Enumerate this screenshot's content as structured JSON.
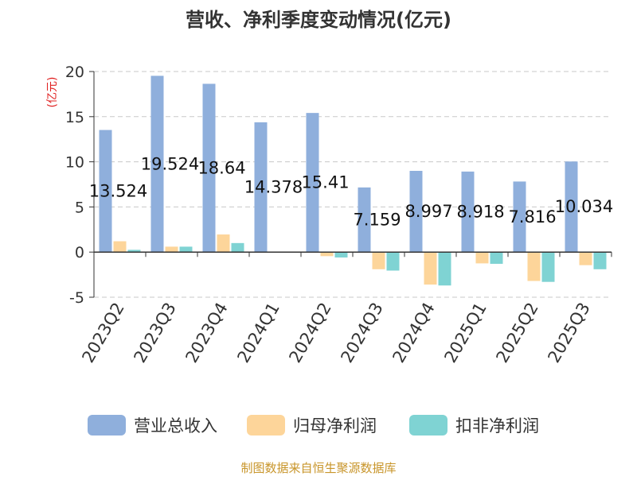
{
  "chart_data": {
    "type": "bar",
    "title": "营收、净利季度变动情况(亿元)",
    "ylabel": "(亿元)",
    "xlabel": "",
    "ylim": [
      -5,
      20
    ],
    "yticks": [
      -5,
      0,
      5,
      10,
      15,
      20
    ],
    "ytick_labels": [
      "-5",
      "0",
      "5",
      "10",
      "15",
      "20"
    ],
    "grid": true,
    "legend_position": "bottom",
    "categories": [
      "2023Q2",
      "2023Q3",
      "2023Q4",
      "2024Q1",
      "2024Q2",
      "2024Q3",
      "2024Q4",
      "2025Q1",
      "2025Q2",
      "2025Q3"
    ],
    "series": [
      {
        "name": "营业总收入",
        "color": "#8fafdc",
        "values": [
          13.524,
          19.524,
          18.64,
          14.378,
          15.41,
          7.159,
          8.997,
          8.918,
          7.816,
          10.034
        ],
        "labels": [
          "13.524",
          "19.524",
          "18.64",
          "14.378",
          "15.41",
          "7.159",
          "8.997",
          "8.918",
          "7.816",
          "10.034"
        ]
      },
      {
        "name": "归母净利润",
        "color": "#fdd59a",
        "values": [
          1.2,
          0.6,
          1.95,
          0.05,
          -0.45,
          -1.9,
          -3.6,
          -1.25,
          -3.2,
          -1.45
        ]
      },
      {
        "name": "扣非净利润",
        "color": "#7fd3d3",
        "values": [
          0.25,
          0.6,
          1.0,
          0.05,
          -0.6,
          -2.05,
          -3.7,
          -1.3,
          -3.3,
          -1.9
        ]
      }
    ],
    "source": "制图数据来自恒生聚源数据库",
    "title_color": "#333333",
    "ylabel_color": "#e02020",
    "source_color": "#c8952a"
  }
}
